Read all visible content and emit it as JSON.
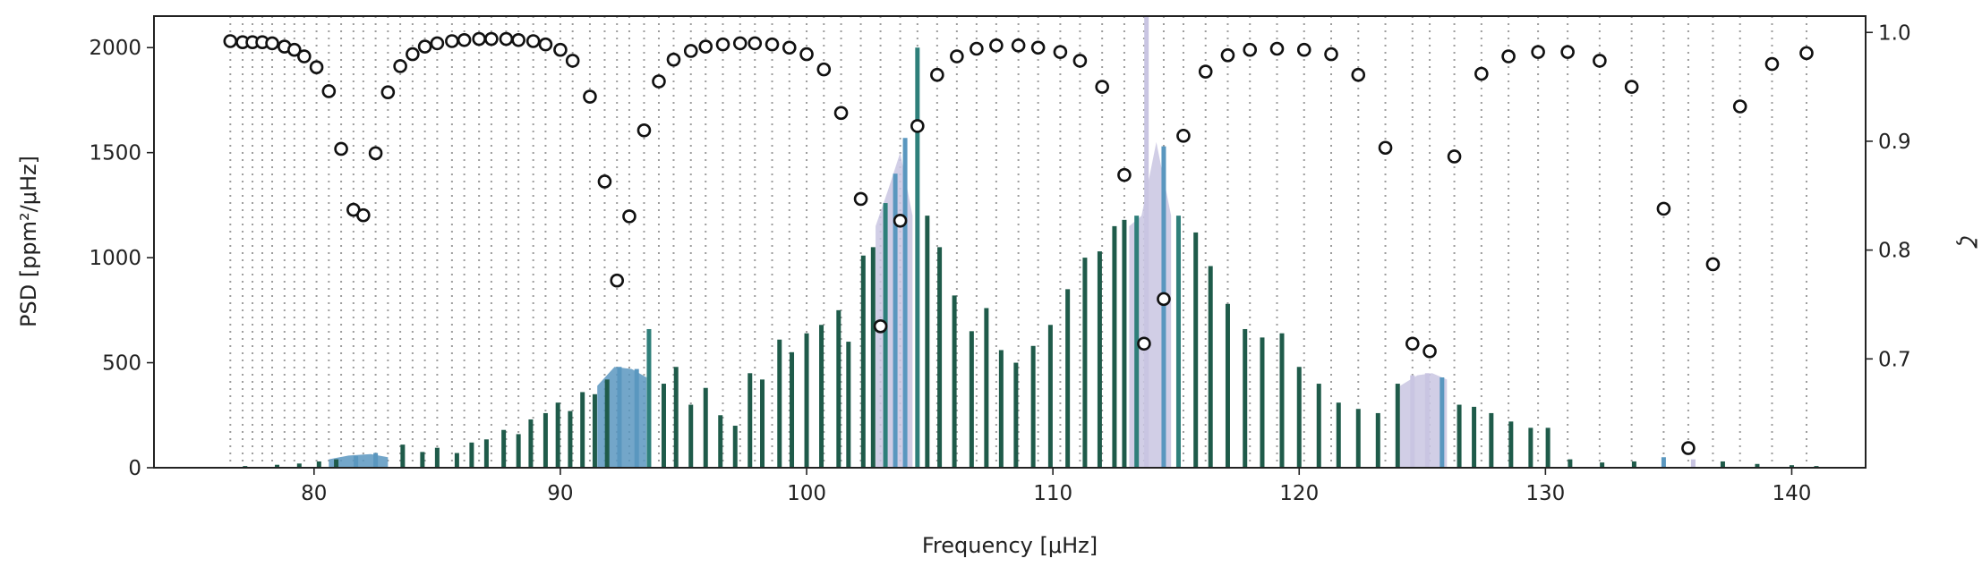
{
  "chart_data": {
    "type": "bar+scatter",
    "xlabel": "Frequency [μHz]",
    "ylabel_left": "PSD [ppm²/μHz]",
    "ylabel_right": "ζ",
    "xlim": [
      73.5,
      143
    ],
    "ylim_left": [
      0,
      2150
    ],
    "ylim_right": [
      0.6,
      1.015
    ],
    "x_ticks": [
      80,
      90,
      100,
      110,
      120,
      130,
      140
    ],
    "y_ticks_left": [
      0,
      500,
      1000,
      1500,
      2000
    ],
    "y_ticks_right": [
      0.7,
      0.8,
      0.9,
      1.0
    ],
    "x_tick_labels": [
      "80",
      "90",
      "100",
      "110",
      "120",
      "130",
      "140"
    ],
    "y_tick_labels_left": [
      "0",
      "500",
      "1000",
      "1500",
      "2000"
    ],
    "y_tick_labels_right": [
      "0.7",
      "0.8",
      "0.9",
      "1.0"
    ],
    "grid": "vertical dotted lines at each mixed-mode frequency",
    "colors": {
      "psd": "#1f5b4a",
      "psd_mid": "#2e7f7a",
      "psd_light": "#5a97bf",
      "psd_pale": "#c9c5e2",
      "zeta_marker_edge": "#111111"
    },
    "zeta": {
      "x": [
        76.6,
        77.1,
        77.5,
        77.9,
        78.3,
        78.8,
        79.2,
        79.6,
        80.1,
        80.6,
        81.1,
        81.6,
        82.0,
        82.5,
        83.0,
        83.5,
        84.0,
        84.5,
        85.0,
        85.6,
        86.1,
        86.7,
        87.2,
        87.8,
        88.3,
        88.9,
        89.4,
        90.0,
        90.5,
        91.2,
        91.8,
        92.3,
        92.8,
        93.4,
        94.0,
        94.6,
        95.3,
        95.9,
        96.6,
        97.3,
        97.9,
        98.6,
        99.3,
        100.0,
        100.7,
        101.4,
        102.2,
        103.0,
        103.8,
        104.5,
        105.3,
        106.1,
        106.9,
        107.7,
        108.6,
        109.4,
        110.3,
        111.1,
        112.0,
        112.9,
        113.7,
        114.5,
        115.3,
        116.2,
        117.1,
        118.0,
        119.1,
        120.2,
        121.3,
        122.4,
        123.5,
        124.6,
        125.3,
        126.3,
        127.4,
        128.5,
        129.7,
        130.9,
        132.2,
        133.5,
        134.8,
        135.8,
        136.8,
        137.9,
        139.2,
        140.6
      ],
      "values": [
        0.992,
        0.991,
        0.991,
        0.991,
        0.99,
        0.987,
        0.984,
        0.978,
        0.968,
        0.946,
        0.893,
        0.837,
        0.832,
        0.889,
        0.945,
        0.969,
        0.98,
        0.987,
        0.99,
        0.992,
        0.993,
        0.994,
        0.994,
        0.994,
        0.993,
        0.992,
        0.989,
        0.984,
        0.974,
        0.941,
        0.863,
        0.772,
        0.831,
        0.91,
        0.955,
        0.975,
        0.983,
        0.987,
        0.989,
        0.99,
        0.99,
        0.989,
        0.986,
        0.98,
        0.966,
        0.926,
        0.847,
        0.73,
        0.827,
        0.914,
        0.961,
        0.978,
        0.985,
        0.988,
        0.988,
        0.986,
        0.982,
        0.974,
        0.95,
        0.869,
        0.714,
        0.755,
        0.905,
        0.964,
        0.979,
        0.984,
        0.985,
        0.984,
        0.98,
        0.961,
        0.894,
        0.714,
        0.707,
        0.886,
        0.962,
        0.978,
        0.982,
        0.982,
        0.974,
        0.95,
        0.838,
        0.618,
        0.787,
        0.932,
        0.971,
        0.981
      ]
    },
    "psd_modes": [
      {
        "x": 77.2,
        "v": 8
      },
      {
        "x": 78.5,
        "v": 14
      },
      {
        "x": 79.4,
        "v": 20
      },
      {
        "x": 80.2,
        "v": 30
      },
      {
        "x": 80.9,
        "v": 40
      },
      {
        "x": 81.7,
        "v": 55,
        "c": "#5a97bf"
      },
      {
        "x": 82.5,
        "v": 70,
        "c": "#5a97bf"
      },
      {
        "x": 83.6,
        "v": 110
      },
      {
        "x": 84.4,
        "v": 75
      },
      {
        "x": 85.0,
        "v": 95
      },
      {
        "x": 85.8,
        "v": 70
      },
      {
        "x": 86.4,
        "v": 120
      },
      {
        "x": 87.0,
        "v": 135
      },
      {
        "x": 87.7,
        "v": 180
      },
      {
        "x": 88.3,
        "v": 160
      },
      {
        "x": 88.8,
        "v": 230
      },
      {
        "x": 89.4,
        "v": 260
      },
      {
        "x": 89.9,
        "v": 310
      },
      {
        "x": 90.4,
        "v": 270
      },
      {
        "x": 90.9,
        "v": 360
      },
      {
        "x": 91.4,
        "v": 350
      },
      {
        "x": 91.9,
        "v": 420
      },
      {
        "x": 92.4,
        "v": 480,
        "c": "#5a97bf"
      },
      {
        "x": 93.1,
        "v": 470,
        "c": "#5a97bf"
      },
      {
        "x": 93.6,
        "v": 660,
        "c": "#2e7f7a"
      },
      {
        "x": 94.2,
        "v": 400
      },
      {
        "x": 94.7,
        "v": 480
      },
      {
        "x": 95.3,
        "v": 300
      },
      {
        "x": 95.9,
        "v": 380
      },
      {
        "x": 96.5,
        "v": 250
      },
      {
        "x": 97.1,
        "v": 200
      },
      {
        "x": 97.7,
        "v": 450
      },
      {
        "x": 98.2,
        "v": 420
      },
      {
        "x": 98.9,
        "v": 610
      },
      {
        "x": 99.4,
        "v": 550
      },
      {
        "x": 100.0,
        "v": 640
      },
      {
        "x": 100.6,
        "v": 680
      },
      {
        "x": 101.3,
        "v": 750
      },
      {
        "x": 101.7,
        "v": 600
      },
      {
        "x": 102.3,
        "v": 1010
      },
      {
        "x": 102.7,
        "v": 1050
      },
      {
        "x": 103.2,
        "v": 1260,
        "c": "#2e7f7a"
      },
      {
        "x": 103.6,
        "v": 1400,
        "c": "#5a97bf"
      },
      {
        "x": 104.0,
        "v": 1570,
        "c": "#5a97bf"
      },
      {
        "x": 104.5,
        "v": 2000,
        "c": "#2e7f7a"
      },
      {
        "x": 104.9,
        "v": 1200
      },
      {
        "x": 105.4,
        "v": 1050
      },
      {
        "x": 106.0,
        "v": 820
      },
      {
        "x": 106.7,
        "v": 650
      },
      {
        "x": 107.3,
        "v": 760
      },
      {
        "x": 107.9,
        "v": 560
      },
      {
        "x": 108.5,
        "v": 500
      },
      {
        "x": 109.2,
        "v": 580
      },
      {
        "x": 109.9,
        "v": 680
      },
      {
        "x": 110.6,
        "v": 850
      },
      {
        "x": 111.3,
        "v": 1000
      },
      {
        "x": 111.9,
        "v": 1030
      },
      {
        "x": 112.5,
        "v": 1150
      },
      {
        "x": 112.9,
        "v": 1180
      },
      {
        "x": 113.4,
        "v": 1200,
        "c": "#2e7f7a"
      },
      {
        "x": 113.8,
        "v": 2150,
        "c": "#c9c5e2"
      },
      {
        "x": 114.5,
        "v": 1530,
        "c": "#5a97bf"
      },
      {
        "x": 115.1,
        "v": 1200,
        "c": "#2e7f7a"
      },
      {
        "x": 115.8,
        "v": 1120
      },
      {
        "x": 116.4,
        "v": 960
      },
      {
        "x": 117.1,
        "v": 780
      },
      {
        "x": 117.8,
        "v": 660
      },
      {
        "x": 118.5,
        "v": 620
      },
      {
        "x": 119.3,
        "v": 640
      },
      {
        "x": 120.0,
        "v": 480
      },
      {
        "x": 120.8,
        "v": 400
      },
      {
        "x": 121.6,
        "v": 310
      },
      {
        "x": 122.4,
        "v": 280
      },
      {
        "x": 123.2,
        "v": 260
      },
      {
        "x": 124.0,
        "v": 400
      },
      {
        "x": 124.6,
        "v": 440,
        "c": "#c9c5e2"
      },
      {
        "x": 125.2,
        "v": 450,
        "c": "#c9c5e2"
      },
      {
        "x": 125.8,
        "v": 430,
        "c": "#5a97bf"
      },
      {
        "x": 126.5,
        "v": 300
      },
      {
        "x": 127.1,
        "v": 290
      },
      {
        "x": 127.8,
        "v": 260
      },
      {
        "x": 128.6,
        "v": 220
      },
      {
        "x": 129.4,
        "v": 190
      },
      {
        "x": 130.1,
        "v": 190
      },
      {
        "x": 131.0,
        "v": 40
      },
      {
        "x": 132.3,
        "v": 25
      },
      {
        "x": 133.6,
        "v": 30
      },
      {
        "x": 134.8,
        "v": 50,
        "c": "#5a97bf"
      },
      {
        "x": 136.0,
        "v": 40,
        "c": "#c9c5e2"
      },
      {
        "x": 137.2,
        "v": 30
      },
      {
        "x": 138.6,
        "v": 18
      },
      {
        "x": 140.0,
        "v": 12
      },
      {
        "x": 141.0,
        "v": 8
      }
    ],
    "psd_envelopes": [
      {
        "x": [
          80.6,
          81.4,
          82.3,
          83.0
        ],
        "v": [
          40,
          58,
          65,
          50
        ],
        "c": "#5a97bf"
      },
      {
        "x": [
          91.5,
          92.2,
          92.9,
          93.5
        ],
        "v": [
          390,
          480,
          470,
          430
        ],
        "c": "#5a97bf"
      },
      {
        "x": [
          102.8,
          103.3,
          103.8,
          104.3
        ],
        "v": [
          1150,
          1320,
          1500,
          1200
        ],
        "c": "#c9c5e2"
      },
      {
        "x": [
          113.1,
          113.6,
          114.2,
          114.8
        ],
        "v": [
          1150,
          1200,
          1550,
          1200
        ],
        "c": "#c9c5e2"
      },
      {
        "x": [
          124.1,
          124.8,
          125.4,
          126.0
        ],
        "v": [
          390,
          440,
          450,
          420
        ],
        "c": "#c9c5e2"
      }
    ]
  }
}
